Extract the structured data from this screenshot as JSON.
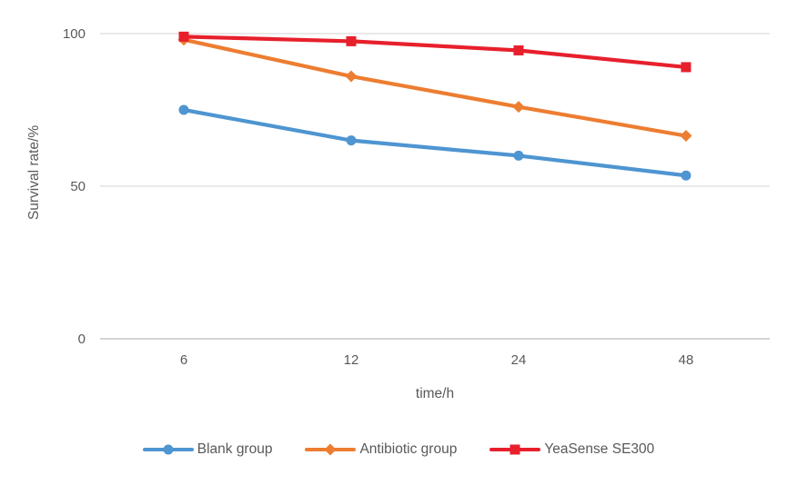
{
  "chart_data": {
    "type": "line",
    "title": "",
    "xlabel": "time/h",
    "ylabel": "Survival rate/%",
    "categories": [
      "6",
      "12",
      "24",
      "48"
    ],
    "yticks": [
      0,
      50,
      100
    ],
    "ylim": [
      0,
      105
    ],
    "grid": true,
    "legend_position": "bottom",
    "axis_text_color": "#595959",
    "gridline_color": "#DCDCDC",
    "axis_line_color": "#C6C6C6",
    "series": [
      {
        "name": "Blank group",
        "color": "#4E95D1",
        "marker": "circle",
        "values": [
          75,
          65,
          60,
          53.5
        ]
      },
      {
        "name": "Antibiotic group",
        "color": "#ED7D31",
        "marker": "diamond",
        "values": [
          98,
          86,
          76,
          66.5
        ]
      },
      {
        "name": "YeaSense SE300",
        "color": "#E7202C",
        "marker": "square",
        "values": [
          99,
          97.5,
          94.5,
          89
        ]
      }
    ]
  }
}
